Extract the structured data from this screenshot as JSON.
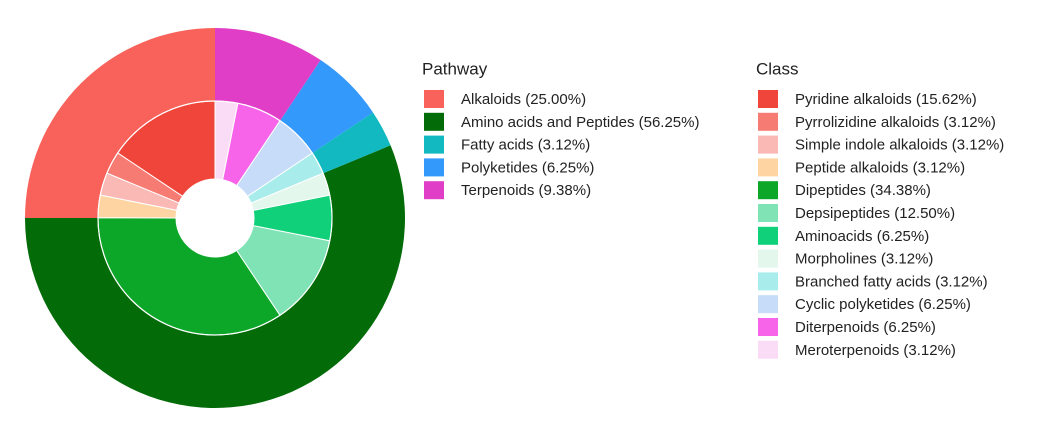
{
  "chart_data": {
    "type": "sunburst",
    "rings": [
      {
        "name": "Pathway",
        "categories": [
          "Alkaloids (25.00%)",
          "Amino acids and Peptides (56.25%)",
          "Fatty acids (3.12%)",
          "Polyketides (6.25%)",
          "Terpenoids (9.38%)"
        ],
        "values": [
          25.0,
          56.25,
          3.12,
          6.25,
          9.38
        ],
        "colors": [
          "#f8625a",
          "#036b08",
          "#12b9c1",
          "#3399fb",
          "#e03ec6"
        ]
      },
      {
        "name": "Class",
        "categories": [
          "Pyridine alkaloids (15.62%)",
          "Pyrrolizidine alkaloids (3.12%)",
          "Simple indole alkaloids (3.12%)",
          "Peptide alkaloids (3.12%)",
          "Dipeptides (34.38%)",
          "Depsipeptides (12.50%)",
          "Aminoacids (6.25%)",
          "Morpholines (3.12%)",
          "Branched fatty acids (3.12%)",
          "Cyclic polyketides (6.25%)",
          "Diterpenoids (6.25%)",
          "Meroterpenoids (3.12%)"
        ],
        "values": [
          15.62,
          3.12,
          3.12,
          3.12,
          34.38,
          12.5,
          6.25,
          3.12,
          3.12,
          6.25,
          6.25,
          3.12
        ],
        "colors": [
          "#f0453b",
          "#f67c73",
          "#fbb9b5",
          "#fdd4a2",
          "#0ca628",
          "#80e3b5",
          "#11d07a",
          "#e3f7ed",
          "#a9ecec",
          "#c6dcf8",
          "#f764ea",
          "#fbdcf6"
        ]
      }
    ]
  }
}
